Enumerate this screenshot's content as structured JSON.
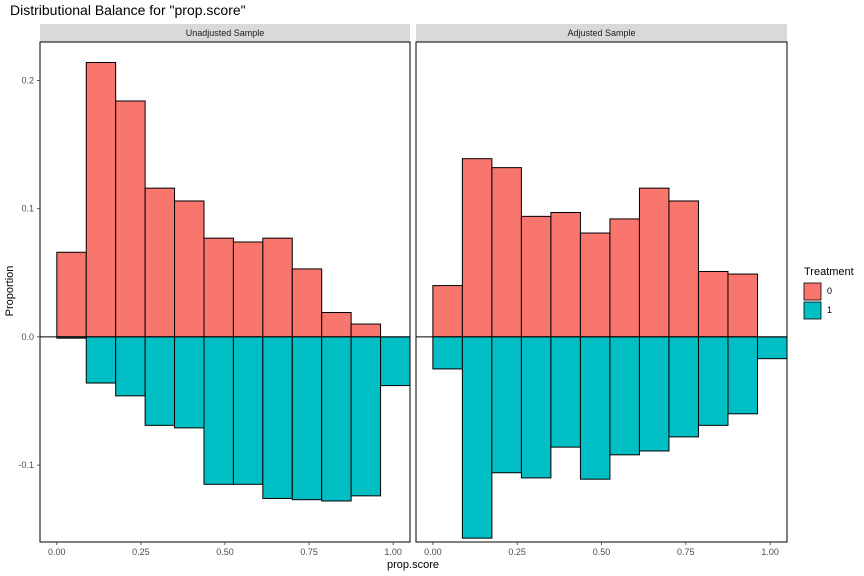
{
  "title": "Distributional Balance for \"prop.score\"",
  "colors": {
    "treat0": "#F8766D",
    "treat1": "#00BFC4",
    "strip_bg": "#D9D9D9",
    "bar_stroke": "#000000"
  },
  "legend": {
    "title": "Treatment",
    "items": [
      {
        "label": "0",
        "color": "#F8766D"
      },
      {
        "label": "1",
        "color": "#00BFC4"
      }
    ]
  },
  "chart_data": {
    "type": "bar",
    "title": "Distributional Balance for \"prop.score\"",
    "xlabel": "prop.score",
    "ylabel": "Proportion",
    "x_ticks": [
      "0.00",
      "0.25",
      "0.50",
      "0.75",
      "1.00"
    ],
    "y_ticks": [
      "-0.1",
      "0.0",
      "0.1",
      "0.2"
    ],
    "xlim": [
      -0.05,
      1.05
    ],
    "ylim": [
      -0.16,
      0.23
    ],
    "bin_width": 0.0875,
    "grid": false,
    "legend_position": "right",
    "panels": [
      {
        "name": "Unadjusted Sample",
        "bins": [
          0.0,
          0.0875,
          0.175,
          0.2625,
          0.35,
          0.4375,
          0.525,
          0.6125,
          0.7,
          0.7875,
          0.875,
          0.9625
        ],
        "series": [
          {
            "name": "0",
            "values": [
              0.066,
              0.214,
              0.184,
              0.116,
              0.106,
              0.077,
              0.074,
              0.077,
              0.053,
              0.019,
              0.01,
              0.0
            ]
          },
          {
            "name": "1",
            "values": [
              -0.001,
              -0.036,
              -0.046,
              -0.069,
              -0.071,
              -0.115,
              -0.115,
              -0.126,
              -0.127,
              -0.128,
              -0.124,
              -0.038
            ]
          }
        ]
      },
      {
        "name": "Adjusted Sample",
        "bins": [
          0.0,
          0.0875,
          0.175,
          0.2625,
          0.35,
          0.4375,
          0.525,
          0.6125,
          0.7,
          0.7875,
          0.875,
          0.9625
        ],
        "series": [
          {
            "name": "0",
            "values": [
              0.04,
              0.139,
              0.132,
              0.094,
              0.097,
              0.081,
              0.092,
              0.116,
              0.106,
              0.051,
              0.049,
              0.0
            ]
          },
          {
            "name": "1",
            "values": [
              -0.025,
              -0.157,
              -0.106,
              -0.11,
              -0.086,
              -0.111,
              -0.092,
              -0.089,
              -0.078,
              -0.069,
              -0.06,
              -0.017
            ]
          }
        ]
      }
    ]
  }
}
